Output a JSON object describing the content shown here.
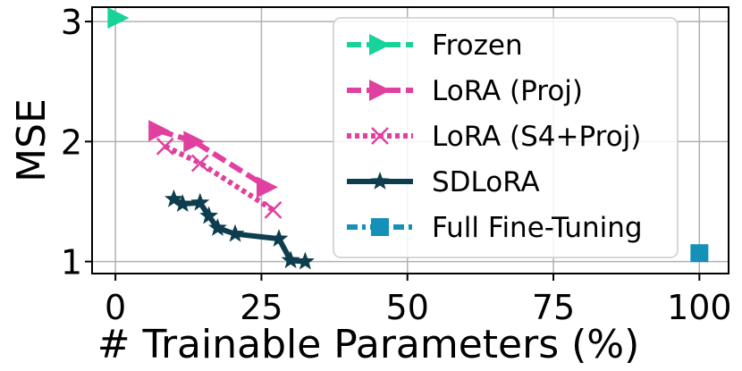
{
  "chart_data": {
    "type": "line",
    "title": "",
    "xlabel": "# Trainable Parameters (%)",
    "ylabel": "MSE",
    "xlim": [
      -4,
      105
    ],
    "ylim": [
      0.9,
      3.12
    ],
    "x_ticks": [
      0,
      25,
      50,
      75,
      100
    ],
    "x_tick_labels": [
      "0",
      "25",
      "50",
      "75",
      "100"
    ],
    "y_ticks": [
      1,
      2,
      3
    ],
    "y_tick_labels": [
      "1",
      "2",
      "3"
    ],
    "grid": true,
    "legend_position": "top-right",
    "series": [
      {
        "name": "Frozen",
        "color": "#17d39a",
        "marker": "triangle-right",
        "line_style": "dashed",
        "points": [
          [
            0.5,
            3.03
          ]
        ]
      },
      {
        "name": "LoRA (Proj)",
        "color": "#e0409f",
        "marker": "triangle-right",
        "line_style": "dashed",
        "points": [
          [
            7.5,
            2.09
          ],
          [
            13.5,
            2.0
          ],
          [
            26,
            1.62
          ]
        ]
      },
      {
        "name": "LoRA (S4+Proj)",
        "color": "#e0409f",
        "marker": "x",
        "line_style": "dotted",
        "points": [
          [
            8.5,
            1.96
          ],
          [
            14.5,
            1.82
          ],
          [
            27,
            1.43
          ]
        ]
      },
      {
        "name": "SDLoRA",
        "color": "#0d3d4f",
        "marker": "star",
        "line_style": "solid",
        "points": [
          [
            10,
            1.52
          ],
          [
            11.5,
            1.48
          ],
          [
            14.5,
            1.49
          ],
          [
            16,
            1.38
          ],
          [
            17.5,
            1.28
          ],
          [
            20.5,
            1.23
          ],
          [
            28,
            1.19
          ],
          [
            30,
            1.01
          ],
          [
            32.5,
            1.0
          ]
        ]
      },
      {
        "name": "Full Fine-Tuning",
        "color": "#1590b8",
        "marker": "square",
        "line_style": "dashdot",
        "points": [
          [
            100,
            1.07
          ]
        ]
      }
    ]
  }
}
